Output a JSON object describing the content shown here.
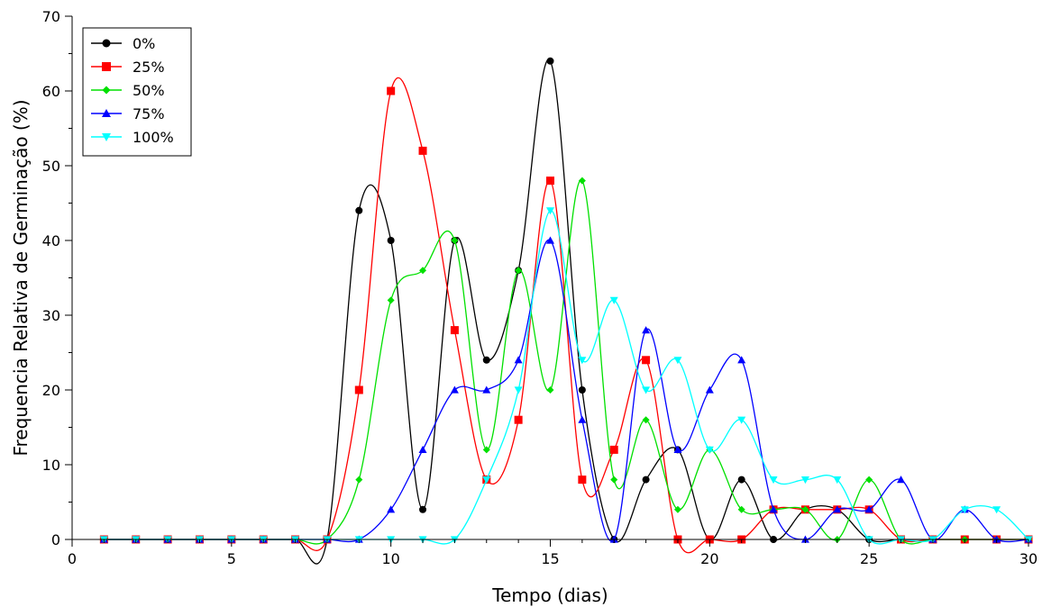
{
  "chart_data": {
    "type": "line",
    "title": "",
    "xlabel": "Tempo (dias)",
    "ylabel": "Frequencia Relativa de Germinação (%)",
    "xlim": [
      0,
      30
    ],
    "ylim": [
      0,
      70
    ],
    "xticks": [
      0,
      5,
      10,
      15,
      20,
      25,
      30
    ],
    "yticks": [
      0,
      10,
      20,
      30,
      40,
      50,
      60,
      70
    ],
    "grid": false,
    "legend_position": "top-left",
    "x": [
      1,
      2,
      3,
      4,
      5,
      6,
      7,
      8,
      9,
      10,
      11,
      12,
      13,
      14,
      15,
      16,
      17,
      18,
      19,
      20,
      21,
      22,
      23,
      24,
      25,
      26,
      27,
      28,
      29,
      30
    ],
    "series": [
      {
        "name": "0%",
        "color": "#000000",
        "marker": "circle",
        "values": [
          0,
          0,
          0,
          0,
          0,
          0,
          0,
          0,
          44,
          40,
          4,
          40,
          24,
          36,
          64,
          20,
          0,
          8,
          12,
          0,
          8,
          0,
          4,
          4,
          0,
          0,
          0,
          0,
          0,
          0
        ]
      },
      {
        "name": "25%",
        "color": "#ff0000",
        "marker": "square",
        "values": [
          0,
          0,
          0,
          0,
          0,
          0,
          0,
          0,
          20,
          60,
          52,
          28,
          8,
          16,
          48,
          8,
          12,
          24,
          0,
          0,
          0,
          4,
          4,
          4,
          4,
          0,
          0,
          0,
          0,
          0
        ]
      },
      {
        "name": "50%",
        "color": "#00e000",
        "marker": "diamond",
        "values": [
          0,
          0,
          0,
          0,
          0,
          0,
          0,
          0,
          8,
          32,
          36,
          40,
          12,
          36,
          20,
          48,
          8,
          16,
          4,
          12,
          4,
          4,
          4,
          0,
          8,
          0,
          0,
          0,
          0,
          0
        ]
      },
      {
        "name": "75%",
        "color": "#0000ff",
        "marker": "triangle-up",
        "values": [
          0,
          0,
          0,
          0,
          0,
          0,
          0,
          0,
          0,
          4,
          12,
          20,
          20,
          24,
          40,
          16,
          0,
          28,
          12,
          20,
          24,
          4,
          0,
          4,
          4,
          8,
          0,
          4,
          0,
          0
        ]
      },
      {
        "name": "100%",
        "color": "#00ffff",
        "marker": "triangle-down",
        "values": [
          0,
          0,
          0,
          0,
          0,
          0,
          0,
          0,
          0,
          0,
          0,
          0,
          8,
          20,
          44,
          24,
          32,
          20,
          24,
          12,
          16,
          8,
          8,
          8,
          0,
          0,
          0,
          4,
          4,
          0
        ]
      }
    ]
  }
}
